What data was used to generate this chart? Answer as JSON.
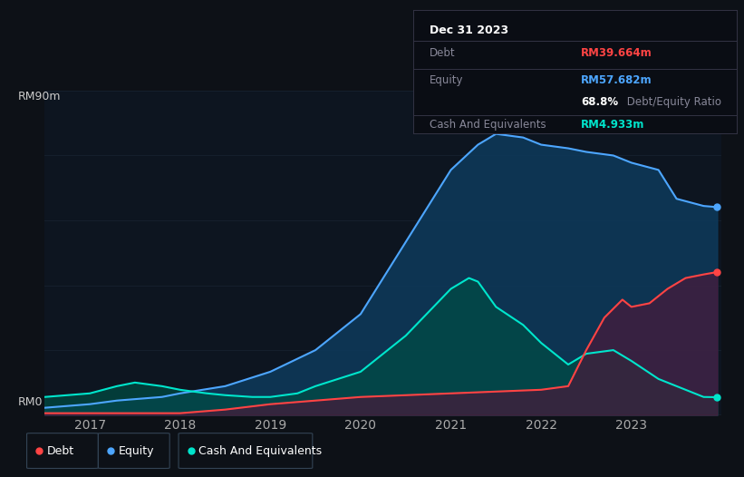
{
  "background_color": "#0d1117",
  "plot_bg_color": "#0d1520",
  "title_box": {
    "date": "Dec 31 2023",
    "debt_label": "Debt",
    "debt_value": "RM39.664m",
    "debt_color": "#ff4444",
    "equity_label": "Equity",
    "equity_value": "RM57.682m",
    "equity_color": "#4da6ff",
    "ratio_bold": "68.8%",
    "ratio_text": " Debt/Equity Ratio",
    "ratio_bold_color": "#ffffff",
    "cash_label": "Cash And Equivalents",
    "cash_value": "RM4.933m",
    "cash_color": "#00e5cc"
  },
  "y_label_top": "RM90m",
  "y_label_bottom": "RM0",
  "x_ticks": [
    "2017",
    "2018",
    "2019",
    "2020",
    "2021",
    "2022",
    "2023"
  ],
  "legend": [
    {
      "label": "Debt",
      "color": "#ff4444"
    },
    {
      "label": "Equity",
      "color": "#4da6ff"
    },
    {
      "label": "Cash And Equivalents",
      "color": "#00e5cc"
    }
  ],
  "equity": {
    "x": [
      2016.5,
      2017.0,
      2017.3,
      2017.8,
      2018.0,
      2018.5,
      2019.0,
      2019.5,
      2020.0,
      2020.5,
      2021.0,
      2021.3,
      2021.5,
      2021.8,
      2022.0,
      2022.3,
      2022.5,
      2022.8,
      2023.0,
      2023.3,
      2023.5,
      2023.8,
      2023.95
    ],
    "y": [
      2,
      3,
      4,
      5,
      6,
      8,
      12,
      18,
      28,
      48,
      68,
      75,
      78,
      77,
      75,
      74,
      73,
      72,
      70,
      68,
      60,
      58,
      57.682
    ],
    "line_color": "#4da6ff",
    "fill_color": "#0d3a5c",
    "fill_alpha": 0.85
  },
  "cash": {
    "x": [
      2016.5,
      2017.0,
      2017.3,
      2017.5,
      2017.8,
      2018.0,
      2018.3,
      2018.5,
      2018.8,
      2019.0,
      2019.3,
      2019.5,
      2020.0,
      2020.5,
      2021.0,
      2021.2,
      2021.3,
      2021.5,
      2021.8,
      2022.0,
      2022.3,
      2022.5,
      2022.8,
      2023.0,
      2023.3,
      2023.5,
      2023.8,
      2023.95
    ],
    "y": [
      5,
      6,
      8,
      9,
      8,
      7,
      6,
      5.5,
      5,
      5,
      6,
      8,
      12,
      22,
      35,
      38,
      37,
      30,
      25,
      20,
      14,
      17,
      18,
      15,
      10,
      8,
      5,
      4.933
    ],
    "line_color": "#00e5cc",
    "fill_color": "#004d44",
    "fill_alpha": 0.7
  },
  "debt": {
    "x": [
      2016.5,
      2017.0,
      2017.5,
      2018.0,
      2018.5,
      2019.0,
      2019.5,
      2020.0,
      2020.5,
      2021.0,
      2021.5,
      2022.0,
      2022.3,
      2022.5,
      2022.7,
      2022.9,
      2023.0,
      2023.2,
      2023.4,
      2023.6,
      2023.8,
      2023.95
    ],
    "y": [
      0.5,
      0.5,
      0.5,
      0.5,
      1.5,
      3,
      4,
      5,
      5.5,
      6,
      6.5,
      7,
      8,
      18,
      27,
      32,
      30,
      31,
      35,
      38,
      39,
      39.664
    ],
    "line_color": "#ff4444",
    "fill_color": "#4a1a3a",
    "fill_alpha": 0.7
  },
  "ylim": [
    0,
    90
  ],
  "xlim": [
    2016.5,
    2024.0
  ],
  "grid_color": "#1e2a3a",
  "grid_alpha": 0.5
}
